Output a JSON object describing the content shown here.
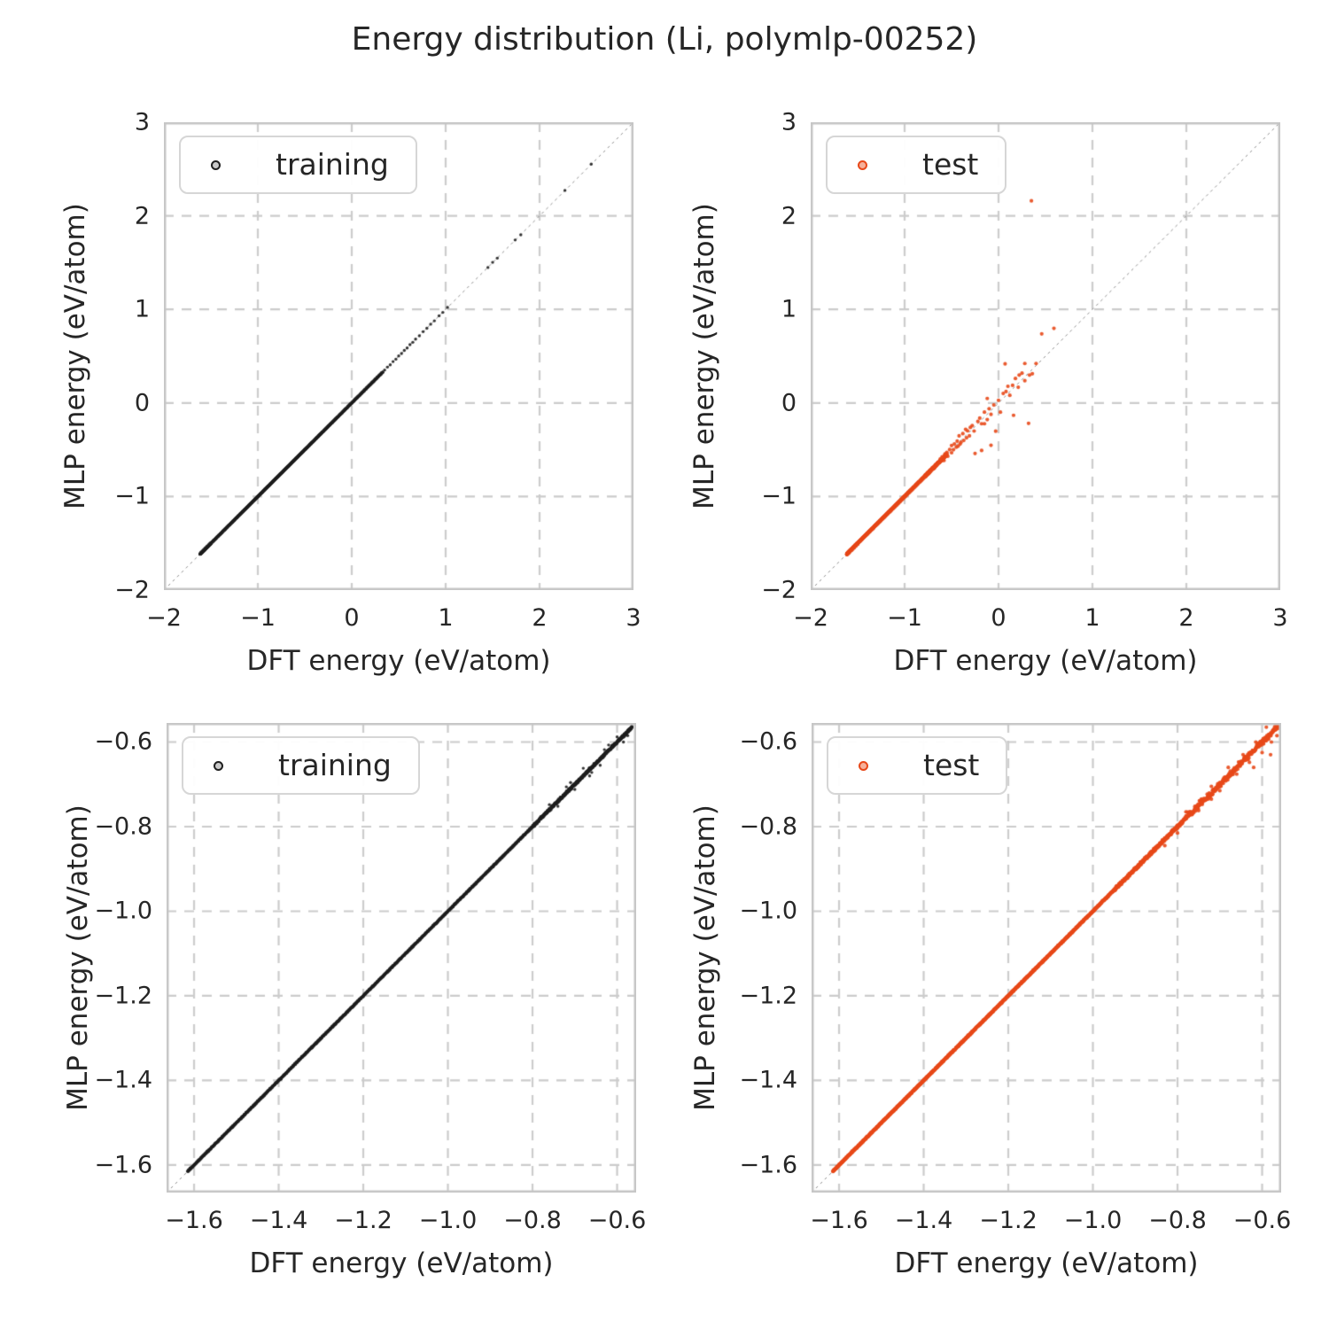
{
  "figure": {
    "title": "Energy distribution (Li, polymlp-00252)"
  },
  "style": {
    "background": "#ffffff",
    "text_color": "#262626",
    "grid_color": "#cccccc",
    "spine_color": "#c6c6c6",
    "identity_line_color": "#8f8f8f",
    "training_color": "#1f1f1f",
    "test_color": "#e8491a"
  },
  "chart_data": [
    {
      "id": "training-full-range",
      "type": "scatter",
      "legend": "training",
      "color": "#1f1f1f",
      "marker_radius": 1.7,
      "seed": 11,
      "xlabel": "DFT energy (eV/atom)",
      "ylabel": "MLP energy (eV/atom)",
      "xlim": [
        -2,
        3
      ],
      "ylim": [
        -2,
        3
      ],
      "grid": true,
      "identity_line": true,
      "legend_position": "upper left",
      "xticks": [
        {
          "v": -2,
          "label": "−2"
        },
        {
          "v": -1,
          "label": "−1"
        },
        {
          "v": 0,
          "label": "0"
        },
        {
          "v": 1,
          "label": "1"
        },
        {
          "v": 2,
          "label": "2"
        },
        {
          "v": 3,
          "label": "3"
        }
      ],
      "yticks": [
        {
          "v": -2,
          "label": "−2"
        },
        {
          "v": -1,
          "label": "−1"
        },
        {
          "v": 0,
          "label": "0"
        },
        {
          "v": 1,
          "label": "1"
        },
        {
          "v": 2,
          "label": "2"
        },
        {
          "v": 3,
          "label": "3"
        }
      ],
      "dense_segments": [
        {
          "x0": -1.615,
          "x1": -1.5,
          "n": 260,
          "jitter": 0.008
        },
        {
          "x0": -1.61,
          "x1": 0.33,
          "n": 1700,
          "jitter": 0.005
        }
      ],
      "points": [
        [
          0.35,
          0.352
        ],
        [
          0.38,
          0.383
        ],
        [
          0.41,
          0.408
        ],
        [
          0.44,
          0.442
        ],
        [
          0.47,
          0.468
        ],
        [
          0.5,
          0.503
        ],
        [
          0.53,
          0.528
        ],
        [
          0.56,
          0.562
        ],
        [
          0.59,
          0.588
        ],
        [
          0.62,
          0.623
        ],
        [
          0.65,
          0.648
        ],
        [
          0.68,
          0.682
        ],
        [
          0.72,
          0.718
        ],
        [
          0.76,
          0.762
        ],
        [
          0.8,
          0.798
        ],
        [
          0.84,
          0.842
        ],
        [
          0.88,
          0.878
        ],
        [
          0.93,
          0.932
        ],
        [
          0.97,
          0.968
        ],
        [
          1.02,
          1.022
        ],
        [
          1.45,
          1.448
        ],
        [
          1.5,
          1.503
        ],
        [
          1.55,
          1.548
        ],
        [
          1.74,
          1.742
        ],
        [
          1.8,
          1.797
        ],
        [
          2.27,
          2.272
        ],
        [
          2.55,
          2.552
        ]
      ]
    },
    {
      "id": "test-full-range",
      "type": "scatter",
      "legend": "test",
      "color": "#e8491a",
      "marker_radius": 2.1,
      "seed": 22,
      "xlabel": "DFT energy (eV/atom)",
      "ylabel": "MLP energy (eV/atom)",
      "xlim": [
        -2,
        3
      ],
      "ylim": [
        -2,
        3
      ],
      "grid": true,
      "identity_line": true,
      "legend_position": "upper left",
      "xticks": [
        {
          "v": -2,
          "label": "−2"
        },
        {
          "v": -1,
          "label": "−1"
        },
        {
          "v": 0,
          "label": "0"
        },
        {
          "v": 1,
          "label": "1"
        },
        {
          "v": 2,
          "label": "2"
        },
        {
          "v": 3,
          "label": "3"
        }
      ],
      "yticks": [
        {
          "v": -2,
          "label": "−2"
        },
        {
          "v": -1,
          "label": "−1"
        },
        {
          "v": 0,
          "label": "0"
        },
        {
          "v": 1,
          "label": "1"
        },
        {
          "v": 2,
          "label": "2"
        },
        {
          "v": 3,
          "label": "3"
        }
      ],
      "dense_segments": [
        {
          "x0": -1.615,
          "x1": -1.5,
          "n": 260,
          "jitter": 0.008
        },
        {
          "x0": -1.61,
          "x1": -0.78,
          "n": 900,
          "jitter": 0.005
        },
        {
          "x0": -0.78,
          "x1": -0.55,
          "n": 220,
          "jitter": 0.018
        }
      ],
      "points": [
        [
          -0.62,
          -0.6
        ],
        [
          -0.6,
          -0.575
        ],
        [
          -0.58,
          -0.615
        ],
        [
          -0.57,
          -0.545
        ],
        [
          -0.55,
          -0.528
        ],
        [
          -0.54,
          -0.57
        ],
        [
          -0.52,
          -0.498
        ],
        [
          -0.5,
          -0.455
        ],
        [
          -0.5,
          -0.532
        ],
        [
          -0.48,
          -0.5
        ],
        [
          -0.47,
          -0.438
        ],
        [
          -0.45,
          -0.472
        ],
        [
          -0.44,
          -0.408
        ],
        [
          -0.43,
          -0.462
        ],
        [
          -0.42,
          -0.352
        ],
        [
          -0.41,
          -0.44
        ],
        [
          -0.4,
          -0.42
        ],
        [
          -0.38,
          -0.328
        ],
        [
          -0.37,
          -0.4
        ],
        [
          -0.35,
          -0.282
        ],
        [
          -0.34,
          -0.372
        ],
        [
          -0.33,
          -0.298
        ],
        [
          -0.31,
          -0.352
        ],
        [
          -0.3,
          -0.262
        ],
        [
          -0.28,
          -0.242
        ],
        [
          -0.26,
          -0.3
        ],
        [
          -0.25,
          -0.54
        ],
        [
          -0.22,
          -0.198
        ],
        [
          -0.2,
          -0.162
        ],
        [
          -0.18,
          -0.508
        ],
        [
          -0.18,
          -0.222
        ],
        [
          -0.15,
          -0.222
        ],
        [
          -0.15,
          -0.098
        ],
        [
          -0.12,
          0.048
        ],
        [
          -0.12,
          -0.178
        ],
        [
          -0.1,
          -0.062
        ],
        [
          -0.08,
          -0.122
        ],
        [
          -0.08,
          -0.452
        ],
        [
          -0.05,
          -0.022
        ],
        [
          -0.03,
          -0.302
        ],
        [
          0.0,
          0.028
        ],
        [
          0.02,
          -0.098
        ],
        [
          0.05,
          0.102
        ],
        [
          0.07,
          0.418
        ],
        [
          0.08,
          0.122
        ],
        [
          0.1,
          0.178
        ],
        [
          0.12,
          0.082
        ],
        [
          0.15,
          0.188
        ],
        [
          0.16,
          -0.132
        ],
        [
          0.18,
          0.262
        ],
        [
          0.21,
          0.168
        ],
        [
          0.22,
          0.298
        ],
        [
          0.25,
          0.318
        ],
        [
          0.28,
          0.422
        ],
        [
          0.28,
          0.238
        ],
        [
          0.32,
          -0.218
        ],
        [
          0.33,
          0.298
        ],
        [
          0.36,
          0.312
        ],
        [
          0.4,
          0.422
        ],
        [
          0.46,
          0.738
        ],
        [
          0.59,
          0.798
        ],
        [
          0.35,
          2.16
        ]
      ]
    },
    {
      "id": "training-zoomed",
      "type": "scatter",
      "legend": "training",
      "color": "#1f1f1f",
      "marker_radius": 1.7,
      "seed": 33,
      "xlabel": "DFT energy (eV/atom)",
      "ylabel": "MLP energy (eV/atom)",
      "xlim": [
        -1.665,
        -0.555
      ],
      "ylim": [
        -1.665,
        -0.555
      ],
      "grid": true,
      "identity_line": true,
      "legend_position": "upper left",
      "xticks": [
        {
          "v": -1.6,
          "label": "−1.6"
        },
        {
          "v": -1.4,
          "label": "−1.4"
        },
        {
          "v": -1.2,
          "label": "−1.2"
        },
        {
          "v": -1.0,
          "label": "−1.0"
        },
        {
          "v": -0.8,
          "label": "−0.8"
        },
        {
          "v": -0.6,
          "label": "−0.6"
        }
      ],
      "yticks": [
        {
          "v": -0.6,
          "label": "−0.6"
        },
        {
          "v": -0.8,
          "label": "−0.8"
        },
        {
          "v": -1.0,
          "label": "−1.0"
        },
        {
          "v": -1.2,
          "label": "−1.2"
        },
        {
          "v": -1.4,
          "label": "−1.4"
        },
        {
          "v": -1.6,
          "label": "−1.6"
        }
      ],
      "dense_segments": [
        {
          "x0": -1.615,
          "x1": -0.8,
          "n": 2300,
          "jitter": 0.002
        },
        {
          "x0": -0.8,
          "x1": -0.565,
          "n": 800,
          "jitter": 0.005
        }
      ],
      "points": [
        [
          -0.76,
          -0.748
        ],
        [
          -0.74,
          -0.752
        ],
        [
          -0.72,
          -0.706
        ],
        [
          -0.71,
          -0.696
        ],
        [
          -0.7,
          -0.712
        ],
        [
          -0.68,
          -0.662
        ],
        [
          -0.665,
          -0.68
        ],
        [
          -0.66,
          -0.672
        ],
        [
          -0.64,
          -0.655
        ],
        [
          -0.63,
          -0.618
        ],
        [
          -0.62,
          -0.607
        ],
        [
          -0.6,
          -0.588
        ],
        [
          -0.585,
          -0.6
        ],
        [
          -0.575,
          -0.585
        ]
      ]
    },
    {
      "id": "test-zoomed",
      "type": "scatter",
      "legend": "test",
      "color": "#e8491a",
      "marker_radius": 2.1,
      "seed": 44,
      "xlabel": "DFT energy (eV/atom)",
      "ylabel": "MLP energy (eV/atom)",
      "xlim": [
        -1.665,
        -0.555
      ],
      "ylim": [
        -1.665,
        -0.555
      ],
      "grid": true,
      "identity_line": true,
      "legend_position": "upper left",
      "xticks": [
        {
          "v": -1.6,
          "label": "−1.6"
        },
        {
          "v": -1.4,
          "label": "−1.4"
        },
        {
          "v": -1.2,
          "label": "−1.2"
        },
        {
          "v": -1.0,
          "label": "−1.0"
        },
        {
          "v": -0.8,
          "label": "−0.8"
        },
        {
          "v": -0.6,
          "label": "−0.6"
        }
      ],
      "yticks": [
        {
          "v": -0.6,
          "label": "−0.6"
        },
        {
          "v": -0.8,
          "label": "−0.8"
        },
        {
          "v": -1.0,
          "label": "−1.0"
        },
        {
          "v": -1.2,
          "label": "−1.2"
        },
        {
          "v": -1.4,
          "label": "−1.4"
        },
        {
          "v": -1.6,
          "label": "−1.6"
        }
      ],
      "dense_segments": [
        {
          "x0": -1.615,
          "x1": -0.95,
          "n": 1200,
          "jitter": 0.0022
        },
        {
          "x0": -0.95,
          "x1": -0.78,
          "n": 400,
          "jitter": 0.005
        },
        {
          "x0": -0.78,
          "x1": -0.56,
          "n": 300,
          "jitter": 0.011
        }
      ],
      "points": [
        [
          -0.83,
          -0.845
        ],
        [
          -0.8,
          -0.815
        ],
        [
          -0.78,
          -0.765
        ],
        [
          -0.75,
          -0.762
        ],
        [
          -0.72,
          -0.705
        ],
        [
          -0.7,
          -0.715
        ],
        [
          -0.68,
          -0.66
        ],
        [
          -0.66,
          -0.676
        ],
        [
          -0.645,
          -0.63
        ],
        [
          -0.63,
          -0.648
        ],
        [
          -0.615,
          -0.6
        ],
        [
          -0.6,
          -0.625
        ],
        [
          -0.59,
          -0.565
        ],
        [
          -0.578,
          -0.6
        ],
        [
          -0.565,
          -0.585
        ],
        [
          -0.62,
          -0.66
        ],
        [
          -0.58,
          -0.63
        ],
        [
          -0.72,
          -0.735
        ]
      ]
    }
  ]
}
